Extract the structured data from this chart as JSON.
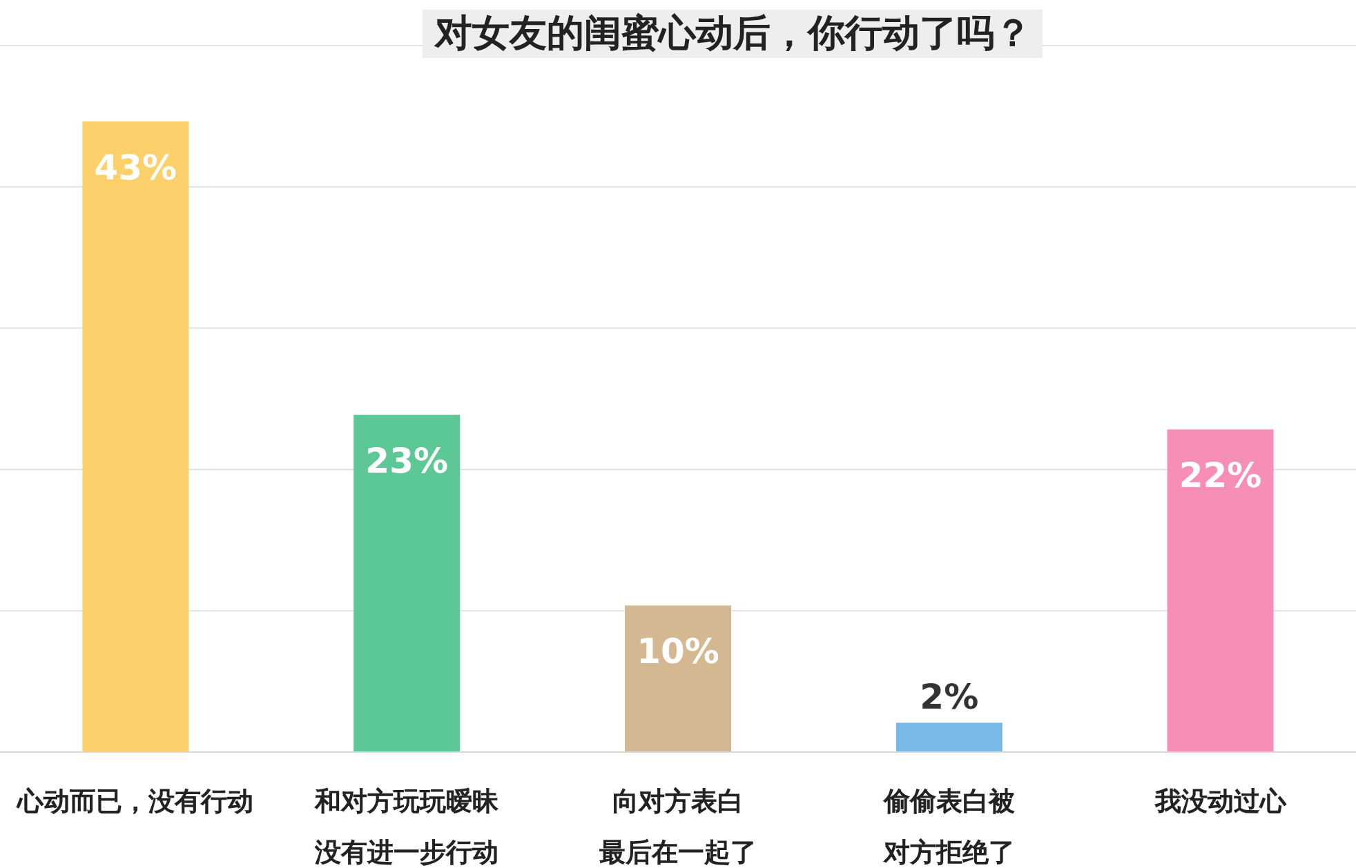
{
  "chart_data": {
    "type": "bar",
    "title": "对女友的闺蜜心动后，你行动了吗？",
    "categories": [
      "心动而已，没有行动",
      "和对方玩玩暧昧没有进一步行动",
      "向对方表白最后在一起了",
      "偷偷表白被对方拒绝了",
      "我没动过心"
    ],
    "values": [
      43,
      23,
      10,
      2,
      22
    ],
    "colors": [
      "#fcd06a",
      "#5cc896",
      "#d3b892",
      "#79b9e8",
      "#f78eb8"
    ],
    "value_labels": [
      "43%",
      "23%",
      "10%",
      "2%",
      "22%"
    ],
    "grid": "y"
  }
}
